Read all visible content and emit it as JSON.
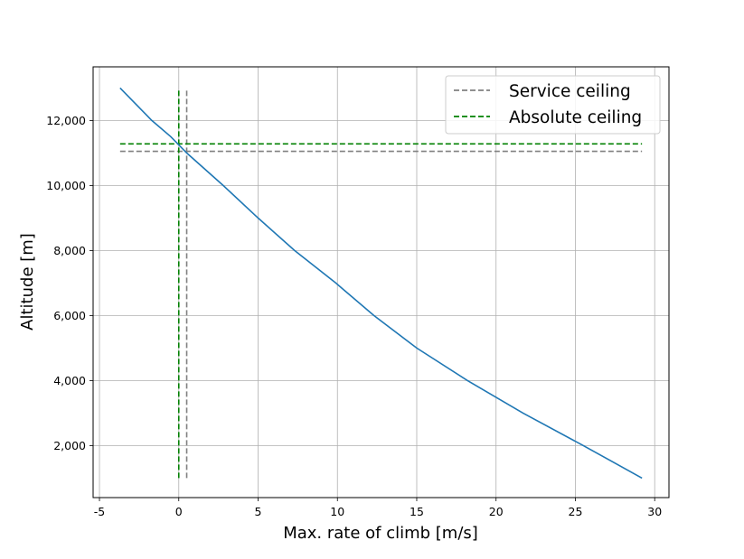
{
  "chart_data": {
    "type": "line",
    "xlabel": "Max. rate of climb [m/s]",
    "ylabel": "Altitude [m]",
    "xlim": [
      -5.4,
      30.9
    ],
    "ylim": [
      400,
      13650
    ],
    "x_ticks": [
      {
        "value": -5,
        "label": "-5"
      },
      {
        "value": 0,
        "label": "0"
      },
      {
        "value": 5,
        "label": "5"
      },
      {
        "value": 10,
        "label": "10"
      },
      {
        "value": 15,
        "label": "15"
      },
      {
        "value": 20,
        "label": "20"
      },
      {
        "value": 25,
        "label": "25"
      },
      {
        "value": 30,
        "label": "30"
      }
    ],
    "y_ticks": [
      {
        "value": 2000,
        "label": "2,000"
      },
      {
        "value": 4000,
        "label": "4,000"
      },
      {
        "value": 6000,
        "label": "6,000"
      },
      {
        "value": 8000,
        "label": "8,000"
      },
      {
        "value": 10000,
        "label": "10,000"
      },
      {
        "value": 12000,
        "label": "12,000"
      }
    ],
    "grid": true,
    "legend_position": "top-right",
    "series": [
      {
        "type": "line",
        "color": "#1f77b4",
        "style": "solid",
        "x": [
          29.2,
          25.5,
          21.7,
          18.2,
          15.0,
          12.3,
          9.9,
          7.3,
          5.0,
          2.8,
          0.5,
          -0.5,
          -1.7,
          -3.7
        ],
        "y": [
          1000,
          2000,
          3000,
          4000,
          5000,
          6000,
          7000,
          8000,
          9000,
          10000,
          11000,
          11500,
          12000,
          13000
        ]
      },
      {
        "name": "Service ceiling",
        "type": "hline",
        "color": "#808080",
        "style": "dashed",
        "y": 11050,
        "x_range": [
          -3.7,
          29.2
        ]
      },
      {
        "type": "vline",
        "color": "#808080",
        "style": "dashed",
        "x": 0.5,
        "y_range": [
          1000,
          13000
        ]
      },
      {
        "name": "Absolute ceiling",
        "type": "hline",
        "color": "#008000",
        "style": "dashed",
        "y": 11280,
        "x_range": [
          -3.7,
          29.2
        ]
      },
      {
        "type": "vline",
        "color": "#008000",
        "style": "dashed",
        "x": 0,
        "y_range": [
          1000,
          13000
        ]
      }
    ],
    "legend": [
      {
        "label": "Service ceiling",
        "color": "#808080",
        "style": "dashed"
      },
      {
        "label": "Absolute ceiling",
        "color": "#008000",
        "style": "dashed"
      }
    ]
  }
}
